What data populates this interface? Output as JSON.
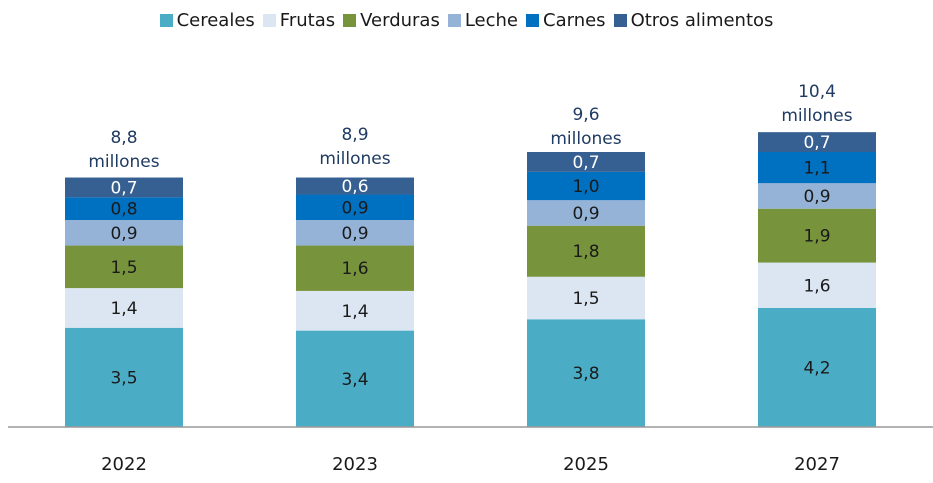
{
  "chart_data": {
    "type": "stacked_bar",
    "categories": [
      "2022",
      "2023",
      "2025",
      "2027"
    ],
    "series": [
      {
        "name": "Cereales",
        "color": "#4bacc6",
        "label_color": "#1a1a1a",
        "values": [
          3.5,
          3.4,
          3.8,
          4.2
        ],
        "value_labels": [
          "3,5",
          "3,4",
          "3,8",
          "4,2"
        ]
      },
      {
        "name": "Frutas",
        "color": "#dce6f2",
        "label_color": "#1a1a1a",
        "values": [
          1.4,
          1.4,
          1.5,
          1.6
        ],
        "value_labels": [
          "1,4",
          "1,4",
          "1,5",
          "1,6"
        ]
      },
      {
        "name": "Verduras",
        "color": "#77933c",
        "label_color": "#1a1a1a",
        "values": [
          1.5,
          1.6,
          1.8,
          1.9
        ],
        "value_labels": [
          "1,5",
          "1,6",
          "1,8",
          "1,9"
        ]
      },
      {
        "name": "Leche",
        "color": "#95b3d7",
        "label_color": "#1a1a1a",
        "values": [
          0.9,
          0.9,
          0.9,
          0.9
        ],
        "value_labels": [
          "0,9",
          "0,9",
          "0,9",
          "0,9"
        ]
      },
      {
        "name": "Carnes",
        "color": "#0070c0",
        "label_color": "#1a1a1a",
        "values": [
          0.8,
          0.9,
          1.0,
          1.1
        ],
        "value_labels": [
          "0,8",
          "0,9",
          "1,0",
          "1,1"
        ]
      },
      {
        "name": "Otros alimentos",
        "color": "#376092",
        "label_color": "#ffffff",
        "values": [
          0.7,
          0.6,
          0.7,
          0.7
        ],
        "value_labels": [
          "0,7",
          "0,6",
          "0,7",
          "0,7"
        ]
      }
    ],
    "totals": [
      8.8,
      8.9,
      9.6,
      10.4
    ],
    "total_labels": [
      "8,8 millones",
      "8,9 millones",
      "9,6 millones",
      "10,4 millones"
    ]
  }
}
